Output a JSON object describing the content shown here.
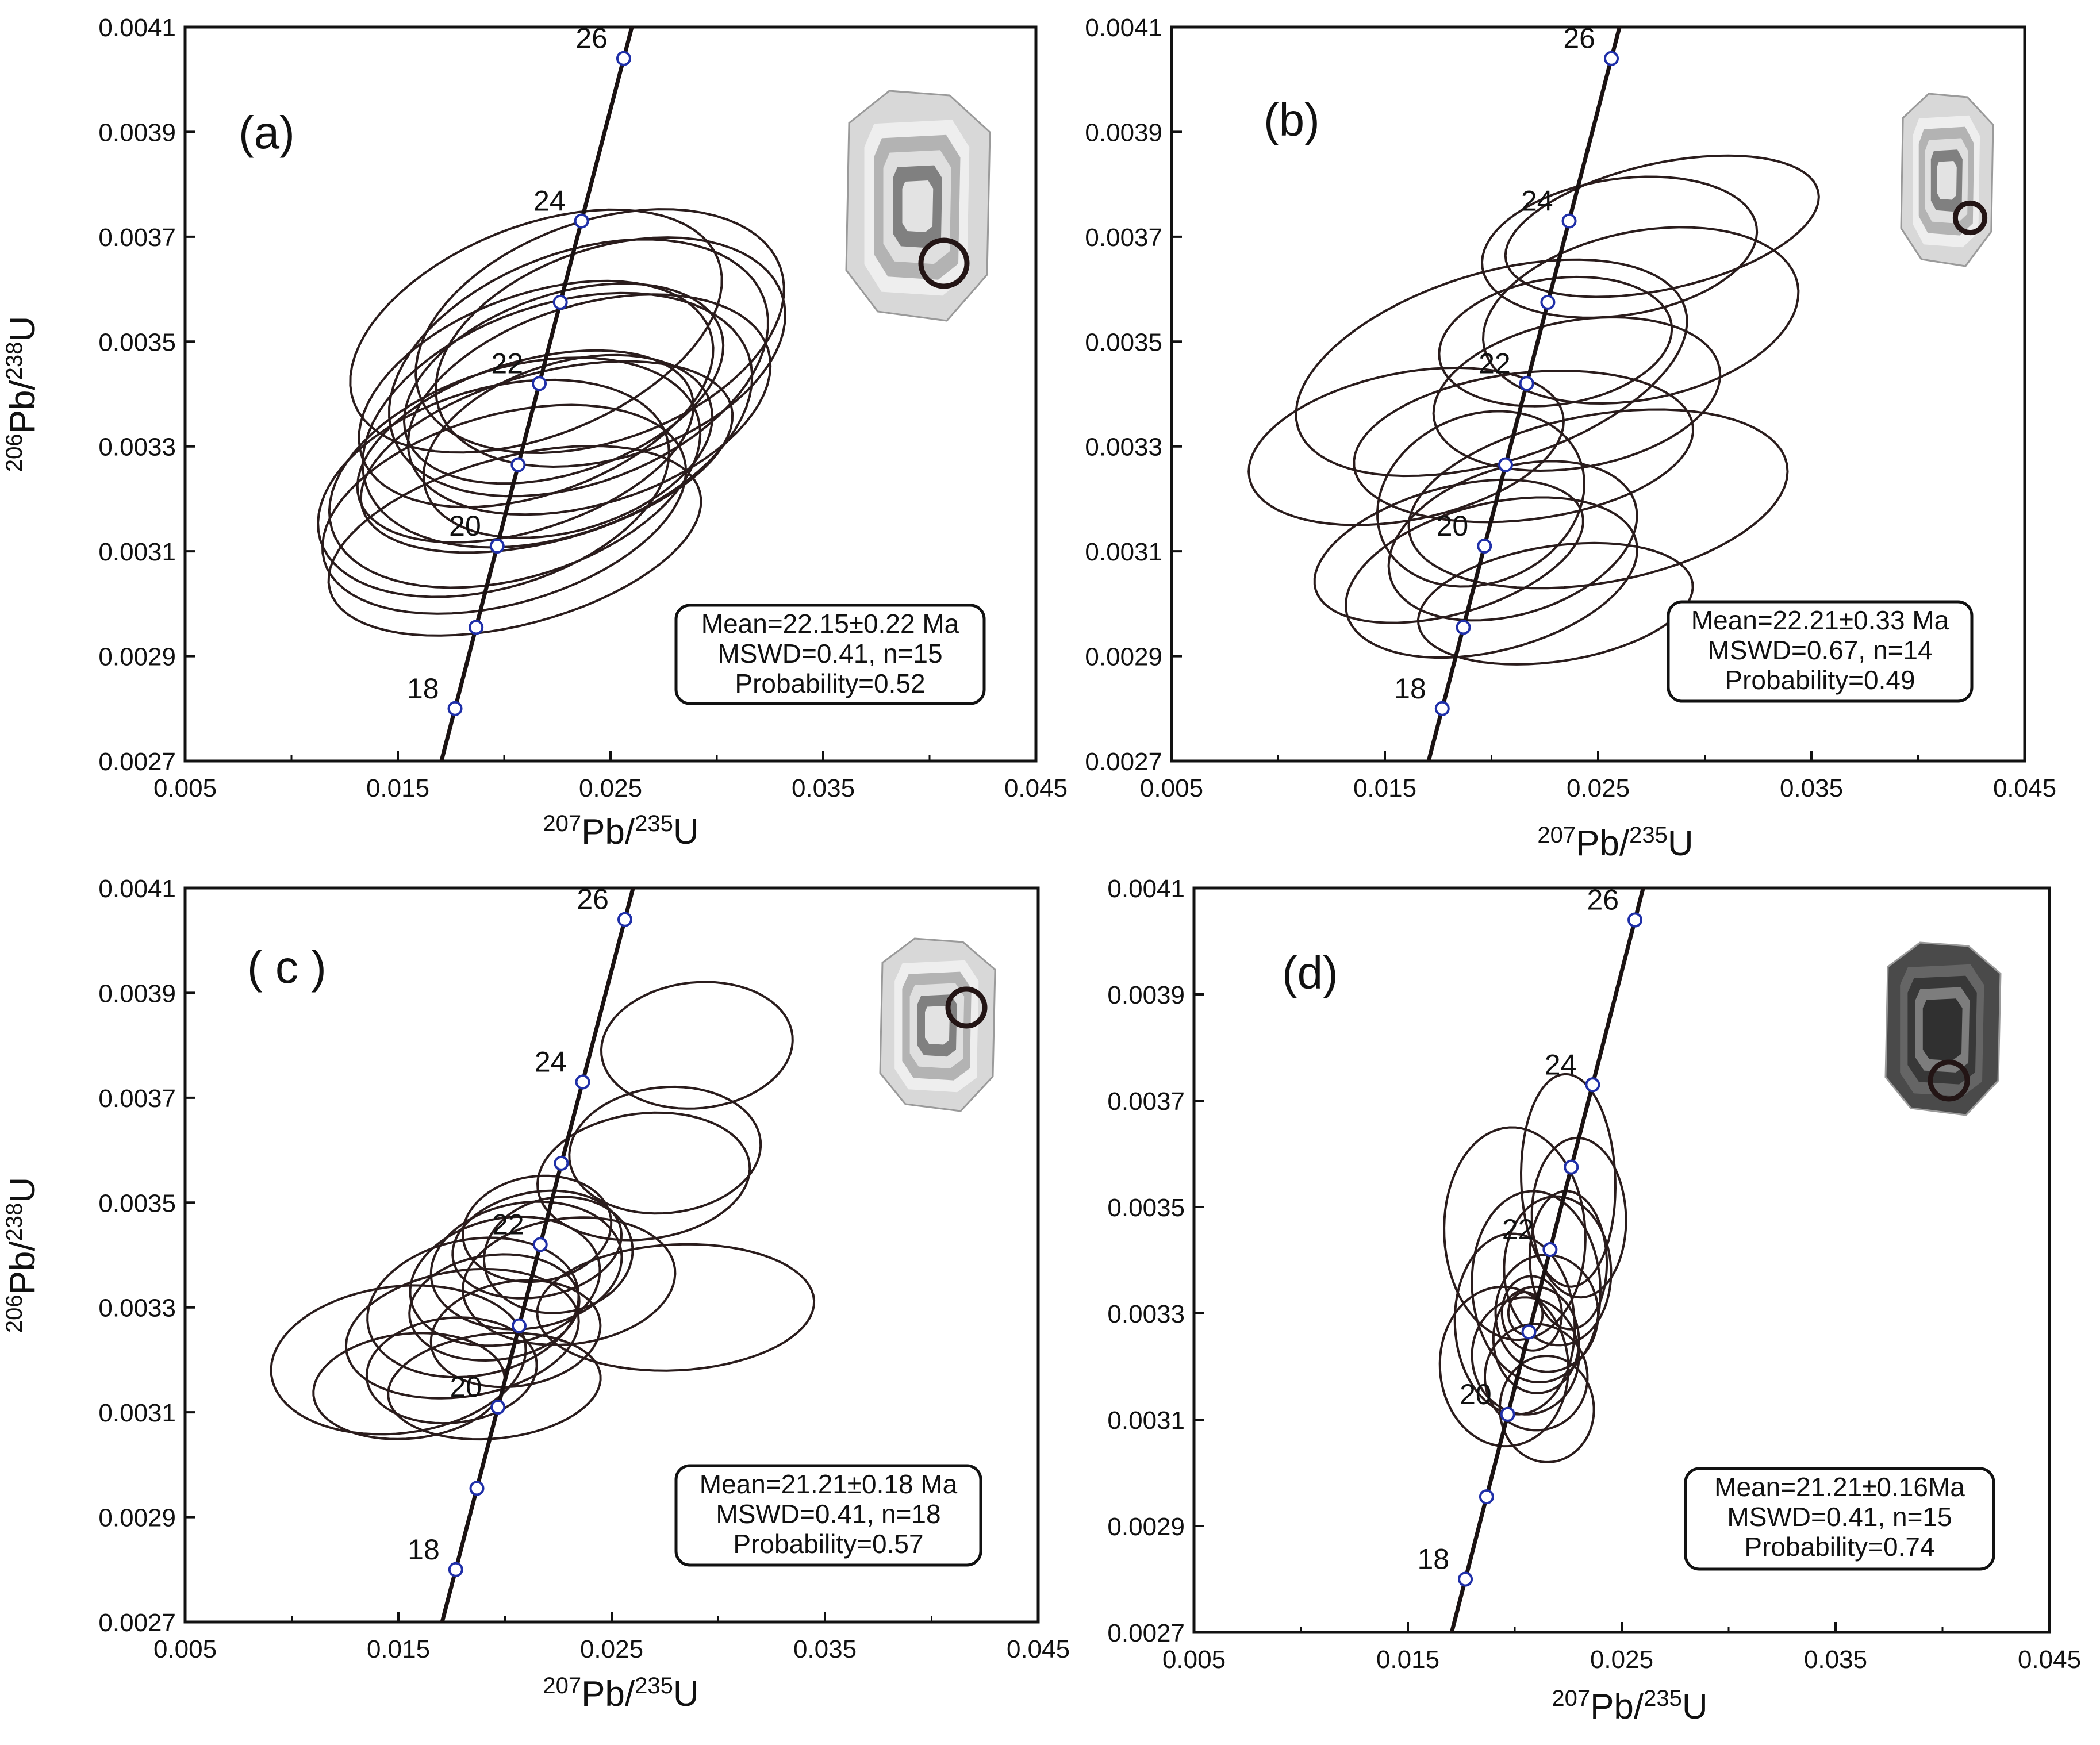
{
  "chart_data": [
    {
      "type": "scatter",
      "panel_label": "(a)",
      "xlabel": {
        "sup1": "207",
        "main1": "Pb/",
        "sup2": "235",
        "main2": "U"
      },
      "ylabel": {
        "sup1": "206",
        "main1": "Pb/",
        "sup2": "238",
        "main2": "U"
      },
      "xlim": [
        0.005,
        0.045
      ],
      "ylim": [
        0.0027,
        0.0041
      ],
      "xticks": [
        "0.005",
        "0.015",
        "0.025",
        "0.035",
        "0.045"
      ],
      "yticks": [
        "0.0027",
        "0.0029",
        "0.0031",
        "0.0033",
        "0.0035",
        "0.0037",
        "0.0039",
        "0.0041"
      ],
      "concordia_ticks": [
        {
          "age": 18,
          "label": "18",
          "x": 0.01769,
          "y": 0.0028
        },
        {
          "age": 19,
          "label": "",
          "x": 0.01868,
          "y": 0.002955
        },
        {
          "age": 20,
          "label": "20",
          "x": 0.01967,
          "y": 0.00311
        },
        {
          "age": 21,
          "label": "",
          "x": 0.02066,
          "y": 0.003265
        },
        {
          "age": 22,
          "label": "22",
          "x": 0.02165,
          "y": 0.00342
        },
        {
          "age": 23,
          "label": "",
          "x": 0.02264,
          "y": 0.003575
        },
        {
          "age": 24,
          "label": "24",
          "x": 0.02364,
          "y": 0.00373
        },
        {
          "age": 26,
          "label": "26",
          "x": 0.02562,
          "y": 0.00404
        }
      ],
      "ellipses": [
        {
          "cx": 0.0215,
          "cy": 0.0034,
          "rx": 0.0087,
          "ry": 0.00019,
          "angle": 0.35
        },
        {
          "cx": 0.0225,
          "cy": 0.00335,
          "rx": 0.0095,
          "ry": 0.00022,
          "angle": 0.33
        },
        {
          "cx": 0.0205,
          "cy": 0.00325,
          "rx": 0.009,
          "ry": 0.0002,
          "angle": 0.3
        },
        {
          "cx": 0.0235,
          "cy": 0.00345,
          "rx": 0.0093,
          "ry": 0.00022,
          "angle": 0.36
        },
        {
          "cx": 0.02,
          "cy": 0.00318,
          "rx": 0.0088,
          "ry": 0.00018,
          "angle": 0.28
        },
        {
          "cx": 0.0245,
          "cy": 0.00352,
          "rx": 0.009,
          "ry": 0.00021,
          "angle": 0.34
        },
        {
          "cx": 0.021,
          "cy": 0.0033,
          "rx": 0.0082,
          "ry": 0.00016,
          "angle": 0.31
        },
        {
          "cx": 0.0228,
          "cy": 0.00342,
          "rx": 0.0078,
          "ry": 0.00017,
          "angle": 0.33
        },
        {
          "cx": 0.0195,
          "cy": 0.00322,
          "rx": 0.0085,
          "ry": 0.00019,
          "angle": 0.29
        },
        {
          "cx": 0.025,
          "cy": 0.00348,
          "rx": 0.0085,
          "ry": 0.0002,
          "angle": 0.32
        },
        {
          "cx": 0.022,
          "cy": 0.00328,
          "rx": 0.009,
          "ry": 0.00016,
          "angle": 0.27
        },
        {
          "cx": 0.024,
          "cy": 0.00338,
          "rx": 0.0088,
          "ry": 0.00019,
          "angle": 0.3
        },
        {
          "cx": 0.0215,
          "cy": 0.00352,
          "rx": 0.0092,
          "ry": 0.0002,
          "angle": 0.38
        },
        {
          "cx": 0.023,
          "cy": 0.0033,
          "rx": 0.007,
          "ry": 0.00016,
          "angle": 0.3
        },
        {
          "cx": 0.0205,
          "cy": 0.00312,
          "rx": 0.009,
          "ry": 0.00016,
          "angle": 0.26
        }
      ],
      "stats": [
        "Mean=22.15±0.22 Ma",
        "MSWD=0.41, n=15",
        "Probability=0.52"
      ]
    },
    {
      "type": "scatter",
      "panel_label": "(b)",
      "xlabel": {
        "sup1": "207",
        "main1": "Pb/",
        "sup2": "235",
        "main2": "U"
      },
      "ylabel": {
        "sup1": "206",
        "main1": "Pb/",
        "sup2": "238",
        "main2": "U"
      },
      "xlim": [
        0.005,
        0.045
      ],
      "ylim": [
        0.0027,
        0.0041
      ],
      "xticks": [
        "0.005",
        "0.015",
        "0.025",
        "0.035",
        "0.045"
      ],
      "yticks": [
        "0.0027",
        "0.0029",
        "0.0031",
        "0.0033",
        "0.0035",
        "0.0037",
        "0.0039",
        "0.0041"
      ],
      "concordia_ticks": [
        {
          "age": 18,
          "label": "18",
          "x": 0.01769,
          "y": 0.0028
        },
        {
          "age": 19,
          "label": "",
          "x": 0.01868,
          "y": 0.002955
        },
        {
          "age": 20,
          "label": "20",
          "x": 0.01967,
          "y": 0.00311
        },
        {
          "age": 21,
          "label": "",
          "x": 0.02066,
          "y": 0.003265
        },
        {
          "age": 22,
          "label": "22",
          "x": 0.02165,
          "y": 0.00342
        },
        {
          "age": 23,
          "label": "",
          "x": 0.02264,
          "y": 0.003575
        },
        {
          "age": 24,
          "label": "24",
          "x": 0.02364,
          "y": 0.00373
        },
        {
          "age": 26,
          "label": "26",
          "x": 0.02562,
          "y": 0.00404
        }
      ],
      "ellipses": [
        {
          "cx": 0.016,
          "cy": 0.0033,
          "rx": 0.0075,
          "ry": 0.00014,
          "angle": 0.2
        },
        {
          "cx": 0.028,
          "cy": 0.00372,
          "rx": 0.0075,
          "ry": 0.00012,
          "angle": 0.22
        },
        {
          "cx": 0.026,
          "cy": 0.00368,
          "rx": 0.0065,
          "ry": 0.00013,
          "angle": 0.15
        },
        {
          "cx": 0.02,
          "cy": 0.00345,
          "rx": 0.0095,
          "ry": 0.00018,
          "angle": 0.3
        },
        {
          "cx": 0.027,
          "cy": 0.00355,
          "rx": 0.0075,
          "ry": 0.00016,
          "angle": 0.2
        },
        {
          "cx": 0.024,
          "cy": 0.0034,
          "rx": 0.0068,
          "ry": 0.00014,
          "angle": 0.18
        },
        {
          "cx": 0.0215,
          "cy": 0.0033,
          "rx": 0.008,
          "ry": 0.00014,
          "angle": 0.12
        },
        {
          "cx": 0.0195,
          "cy": 0.0032,
          "rx": 0.005,
          "ry": 0.00016,
          "angle": 0.4
        },
        {
          "cx": 0.021,
          "cy": 0.00312,
          "rx": 0.006,
          "ry": 0.00014,
          "angle": 0.3
        },
        {
          "cx": 0.023,
          "cy": 0.003,
          "rx": 0.0065,
          "ry": 0.00011,
          "angle": 0.15
        },
        {
          "cx": 0.02,
          "cy": 0.00305,
          "rx": 0.007,
          "ry": 0.00014,
          "angle": 0.25
        },
        {
          "cx": 0.025,
          "cy": 0.0032,
          "rx": 0.009,
          "ry": 0.00016,
          "angle": 0.18
        },
        {
          "cx": 0.018,
          "cy": 0.0031,
          "rx": 0.0065,
          "ry": 0.00012,
          "angle": 0.28
        },
        {
          "cx": 0.023,
          "cy": 0.0035,
          "rx": 0.0055,
          "ry": 0.00012,
          "angle": 0.15
        }
      ],
      "stats": [
        "Mean=22.21±0.33 Ma",
        "MSWD=0.67, n=14",
        "Probability=0.49"
      ]
    },
    {
      "type": "scatter",
      "panel_label": "( c )",
      "xlabel": {
        "sup1": "207",
        "main1": "Pb/",
        "sup2": "235",
        "main2": "U"
      },
      "ylabel": {
        "sup1": "206",
        "main1": "Pb/",
        "sup2": "238",
        "main2": "U"
      },
      "xlim": [
        0.005,
        0.045
      ],
      "ylim": [
        0.0027,
        0.0041
      ],
      "xticks": [
        "0.005",
        "0.015",
        "0.025",
        "0.035",
        "0.045"
      ],
      "yticks": [
        "0.0027",
        "0.0029",
        "0.0031",
        "0.0033",
        "0.0035",
        "0.0037",
        "0.0039",
        "0.0041"
      ],
      "concordia_ticks": [
        {
          "age": 18,
          "label": "18",
          "x": 0.01769,
          "y": 0.0028
        },
        {
          "age": 19,
          "label": "",
          "x": 0.01868,
          "y": 0.002955
        },
        {
          "age": 20,
          "label": "20",
          "x": 0.01967,
          "y": 0.00311
        },
        {
          "age": 21,
          "label": "",
          "x": 0.02066,
          "y": 0.003265
        },
        {
          "age": 22,
          "label": "22",
          "x": 0.02165,
          "y": 0.00342
        },
        {
          "age": 23,
          "label": "",
          "x": 0.02264,
          "y": 0.003575
        },
        {
          "age": 24,
          "label": "24",
          "x": 0.02364,
          "y": 0.00373
        },
        {
          "age": 26,
          "label": "26",
          "x": 0.02562,
          "y": 0.00404
        }
      ],
      "ellipses": [
        {
          "cx": 0.029,
          "cy": 0.0038,
          "rx": 0.0045,
          "ry": 0.00012,
          "angle": 0.1
        },
        {
          "cx": 0.0275,
          "cy": 0.0036,
          "rx": 0.0045,
          "ry": 0.00012,
          "angle": 0.1
        },
        {
          "cx": 0.0265,
          "cy": 0.00355,
          "rx": 0.005,
          "ry": 0.00012,
          "angle": 0.12
        },
        {
          "cx": 0.028,
          "cy": 0.0033,
          "rx": 0.0065,
          "ry": 0.00012,
          "angle": 0.05
        },
        {
          "cx": 0.015,
          "cy": 0.0032,
          "rx": 0.006,
          "ry": 0.00014,
          "angle": 0.12
        },
        {
          "cx": 0.0155,
          "cy": 0.00315,
          "rx": 0.0045,
          "ry": 0.0001,
          "angle": 0.1
        },
        {
          "cx": 0.018,
          "cy": 0.00325,
          "rx": 0.0055,
          "ry": 0.00012,
          "angle": 0.15
        },
        {
          "cx": 0.0185,
          "cy": 0.0033,
          "rx": 0.005,
          "ry": 0.00013,
          "angle": 0.18
        },
        {
          "cx": 0.02,
          "cy": 0.00335,
          "rx": 0.0045,
          "ry": 0.00012,
          "angle": 0.2
        },
        {
          "cx": 0.021,
          "cy": 0.00338,
          "rx": 0.0045,
          "ry": 0.00012,
          "angle": 0.15
        },
        {
          "cx": 0.0215,
          "cy": 0.00342,
          "rx": 0.004,
          "ry": 0.0001,
          "angle": 0.18
        },
        {
          "cx": 0.0195,
          "cy": 0.0033,
          "rx": 0.004,
          "ry": 0.0001,
          "angle": 0.12
        },
        {
          "cx": 0.0175,
          "cy": 0.00318,
          "rx": 0.004,
          "ry": 0.0001,
          "angle": 0.1
        },
        {
          "cx": 0.023,
          "cy": 0.00335,
          "rx": 0.005,
          "ry": 0.00012,
          "angle": 0.12
        },
        {
          "cx": 0.0205,
          "cy": 0.00325,
          "rx": 0.004,
          "ry": 0.0001,
          "angle": 0.15
        },
        {
          "cx": 0.0195,
          "cy": 0.00315,
          "rx": 0.005,
          "ry": 0.0001,
          "angle": 0.1
        },
        {
          "cx": 0.0215,
          "cy": 0.00345,
          "rx": 0.0035,
          "ry": 0.0001,
          "angle": 0.15
        },
        {
          "cx": 0.0225,
          "cy": 0.0034,
          "rx": 0.0035,
          "ry": 0.00011,
          "angle": 0.15
        }
      ],
      "stats": [
        "Mean=21.21±0.18 Ma",
        "MSWD=0.41, n=18",
        "Probability=0.57"
      ]
    },
    {
      "type": "scatter",
      "panel_label": "(d)",
      "xlabel": {
        "sup1": "207",
        "main1": "Pb/",
        "sup2": "235",
        "main2": "U"
      },
      "ylabel": {
        "sup1": "",
        "main1": "",
        "sup2": "",
        "main2": ""
      },
      "xlim": [
        0.005,
        0.045
      ],
      "ylim": [
        0.0027,
        0.0041
      ],
      "xticks": [
        "0.005",
        "0.015",
        "0.025",
        "0.035",
        "0.045"
      ],
      "yticks": [
        "0.0027",
        "0.0029",
        "0.0031",
        "0.0033",
        "0.0035",
        "0.0037",
        "0.0039",
        "0.0041"
      ],
      "concordia_ticks": [
        {
          "age": 18,
          "label": "18",
          "x": 0.01769,
          "y": 0.0028
        },
        {
          "age": 19,
          "label": "",
          "x": 0.01868,
          "y": 0.002955
        },
        {
          "age": 20,
          "label": "20",
          "x": 0.01967,
          "y": 0.00311
        },
        {
          "age": 21,
          "label": "",
          "x": 0.02066,
          "y": 0.003265
        },
        {
          "age": 22,
          "label": "22",
          "x": 0.02165,
          "y": 0.00342
        },
        {
          "age": 23,
          "label": "",
          "x": 0.02264,
          "y": 0.003575
        },
        {
          "age": 24,
          "label": "24",
          "x": 0.02364,
          "y": 0.00373
        },
        {
          "age": 26,
          "label": "26",
          "x": 0.02562,
          "y": 0.00404
        }
      ],
      "ellipses": [
        {
          "cx": 0.02,
          "cy": 0.00345,
          "rx": 0.0033,
          "ry": 0.0002,
          "angle": 0.05
        },
        {
          "cx": 0.0225,
          "cy": 0.00355,
          "rx": 0.0022,
          "ry": 0.0002,
          "angle": 0.03
        },
        {
          "cx": 0.021,
          "cy": 0.00335,
          "rx": 0.003,
          "ry": 0.00018,
          "angle": 0.06
        },
        {
          "cx": 0.02,
          "cy": 0.00328,
          "rx": 0.0028,
          "ry": 0.00017,
          "angle": 0.05
        },
        {
          "cx": 0.0215,
          "cy": 0.0033,
          "rx": 0.0024,
          "ry": 0.00011,
          "angle": 0.04
        },
        {
          "cx": 0.0205,
          "cy": 0.00322,
          "rx": 0.0025,
          "ry": 0.00011,
          "angle": 0.06
        },
        {
          "cx": 0.021,
          "cy": 0.00325,
          "rx": 0.002,
          "ry": 0.0001,
          "angle": 0.05
        },
        {
          "cx": 0.022,
          "cy": 0.00338,
          "rx": 0.0025,
          "ry": 0.00014,
          "angle": 0.04
        },
        {
          "cx": 0.0195,
          "cy": 0.0032,
          "rx": 0.003,
          "ry": 0.00015,
          "angle": 0.06
        },
        {
          "cx": 0.023,
          "cy": 0.00348,
          "rx": 0.0022,
          "ry": 0.00015,
          "angle": 0.03
        },
        {
          "cx": 0.0208,
          "cy": 0.0033,
          "rx": 0.0014,
          "ry": 7e-05,
          "angle": 0.05
        },
        {
          "cx": 0.0205,
          "cy": 0.0033,
          "rx": 0.0008,
          "ry": 4e-05,
          "angle": 0.05
        },
        {
          "cx": 0.021,
          "cy": 0.00318,
          "rx": 0.0024,
          "ry": 0.0001,
          "angle": 0.04
        },
        {
          "cx": 0.0225,
          "cy": 0.0034,
          "rx": 0.0018,
          "ry": 0.00013,
          "angle": 0.04
        },
        {
          "cx": 0.0215,
          "cy": 0.00312,
          "rx": 0.0022,
          "ry": 0.0001,
          "angle": 0.04
        }
      ],
      "stats": [
        "Mean=21.21±0.16Ma",
        "MSWD=0.41, n=15",
        "Probability=0.74"
      ]
    }
  ],
  "colors": {
    "ellipse": "#2a1c1c",
    "concordia": "#1a1212",
    "tick_marker": "#1f2fa8",
    "frame": "#111111"
  }
}
